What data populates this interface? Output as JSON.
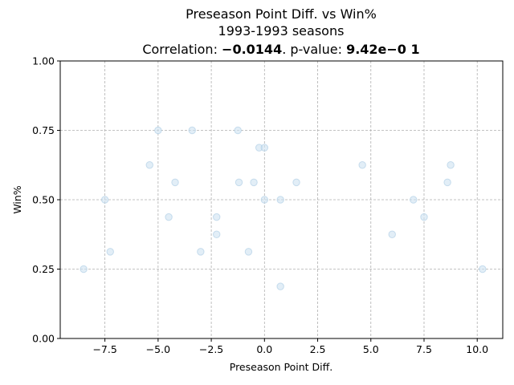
{
  "chart_data": {
    "type": "scatter",
    "title_line1": "Preseason Point Diff. vs Win%",
    "title_line2": "1993-1993 seasons",
    "title_line3_prefix": "Correlation: ",
    "correlation": "−0.0144",
    "title_line3_middle": ". p-value: ",
    "p_value": "9.42e−0 1",
    "xlabel": "Preseason Point Diff.",
    "ylabel": "Win%",
    "xlim": [
      -9.6,
      11.2
    ],
    "ylim": [
      0.0,
      1.0
    ],
    "x_ticks": [
      -7.5,
      -5.0,
      -2.5,
      0.0,
      2.5,
      5.0,
      7.5,
      10.0
    ],
    "x_tick_labels": [
      "−7.5",
      "−5.0",
      "−2.5",
      "0.0",
      "2.5",
      "5.0",
      "7.5",
      "10.0"
    ],
    "y_ticks": [
      0.0,
      0.25,
      0.5,
      0.75,
      1.0
    ],
    "y_tick_labels": [
      "0.00",
      "0.25",
      "0.50",
      "0.75",
      "1.00"
    ],
    "grid": true,
    "marker_color": "#cfe3f2",
    "marker_edge_color": "#a9c9e3",
    "points": [
      {
        "x": -8.5,
        "y": 0.25
      },
      {
        "x": -7.5,
        "y": 0.5
      },
      {
        "x": -7.25,
        "y": 0.3125
      },
      {
        "x": -5.4,
        "y": 0.625
      },
      {
        "x": -5.0,
        "y": 0.75
      },
      {
        "x": -4.5,
        "y": 0.4375
      },
      {
        "x": -4.2,
        "y": 0.5625
      },
      {
        "x": -3.4,
        "y": 0.75
      },
      {
        "x": -3.0,
        "y": 0.3125
      },
      {
        "x": -2.25,
        "y": 0.4375
      },
      {
        "x": -2.25,
        "y": 0.375
      },
      {
        "x": -1.25,
        "y": 0.75
      },
      {
        "x": -1.2,
        "y": 0.5625
      },
      {
        "x": -0.75,
        "y": 0.3125
      },
      {
        "x": -0.5,
        "y": 0.5625
      },
      {
        "x": -0.25,
        "y": 0.6875
      },
      {
        "x": 0.0,
        "y": 0.6875
      },
      {
        "x": 0.0,
        "y": 0.5
      },
      {
        "x": 0.75,
        "y": 0.5
      },
      {
        "x": 0.75,
        "y": 0.1875
      },
      {
        "x": 1.5,
        "y": 0.5625
      },
      {
        "x": 4.6,
        "y": 0.625
      },
      {
        "x": 6.0,
        "y": 0.375
      },
      {
        "x": 7.0,
        "y": 0.5
      },
      {
        "x": 7.5,
        "y": 0.4375
      },
      {
        "x": 8.6,
        "y": 0.5625
      },
      {
        "x": 8.75,
        "y": 0.625
      },
      {
        "x": 10.25,
        "y": 0.25
      }
    ]
  }
}
